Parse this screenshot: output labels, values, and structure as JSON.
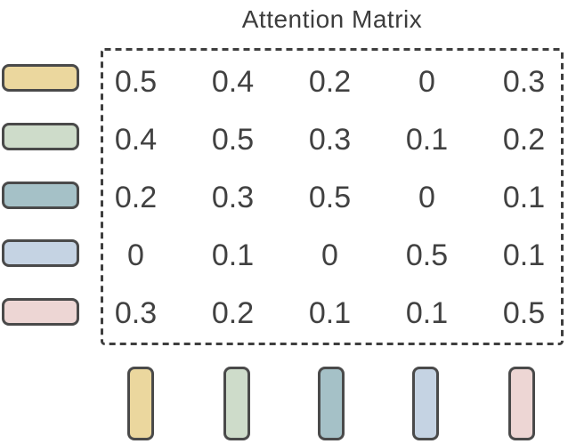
{
  "title": "Attention Matrix",
  "matrix": {
    "rows": [
      [
        "0.5",
        "0.4",
        "0.2",
        "0",
        "0.3"
      ],
      [
        "0.4",
        "0.5",
        "0.3",
        "0.1",
        "0.2"
      ],
      [
        "0.2",
        "0.3",
        "0.5",
        "0",
        "0.1"
      ],
      [
        "0",
        "0.1",
        "0",
        "0.5",
        "0.1"
      ],
      [
        "0.3",
        "0.2",
        "0.1",
        "0.1",
        "0.5"
      ]
    ]
  },
  "tokens": [
    {
      "name": "token-yellow",
      "fill": "#ebd79e"
    },
    {
      "name": "token-green",
      "fill": "#cedcca"
    },
    {
      "name": "token-teal",
      "fill": "#a5c1c7"
    },
    {
      "name": "token-blue",
      "fill": "#c5d3e3"
    },
    {
      "name": "token-pink",
      "fill": "#edd6d4"
    }
  ],
  "style": {
    "background": "#ffffff",
    "dash_border": "#3e3e3e",
    "token_outline": "#4a4a4a",
    "text": "#414141",
    "title_text": "#3d3d3d"
  }
}
